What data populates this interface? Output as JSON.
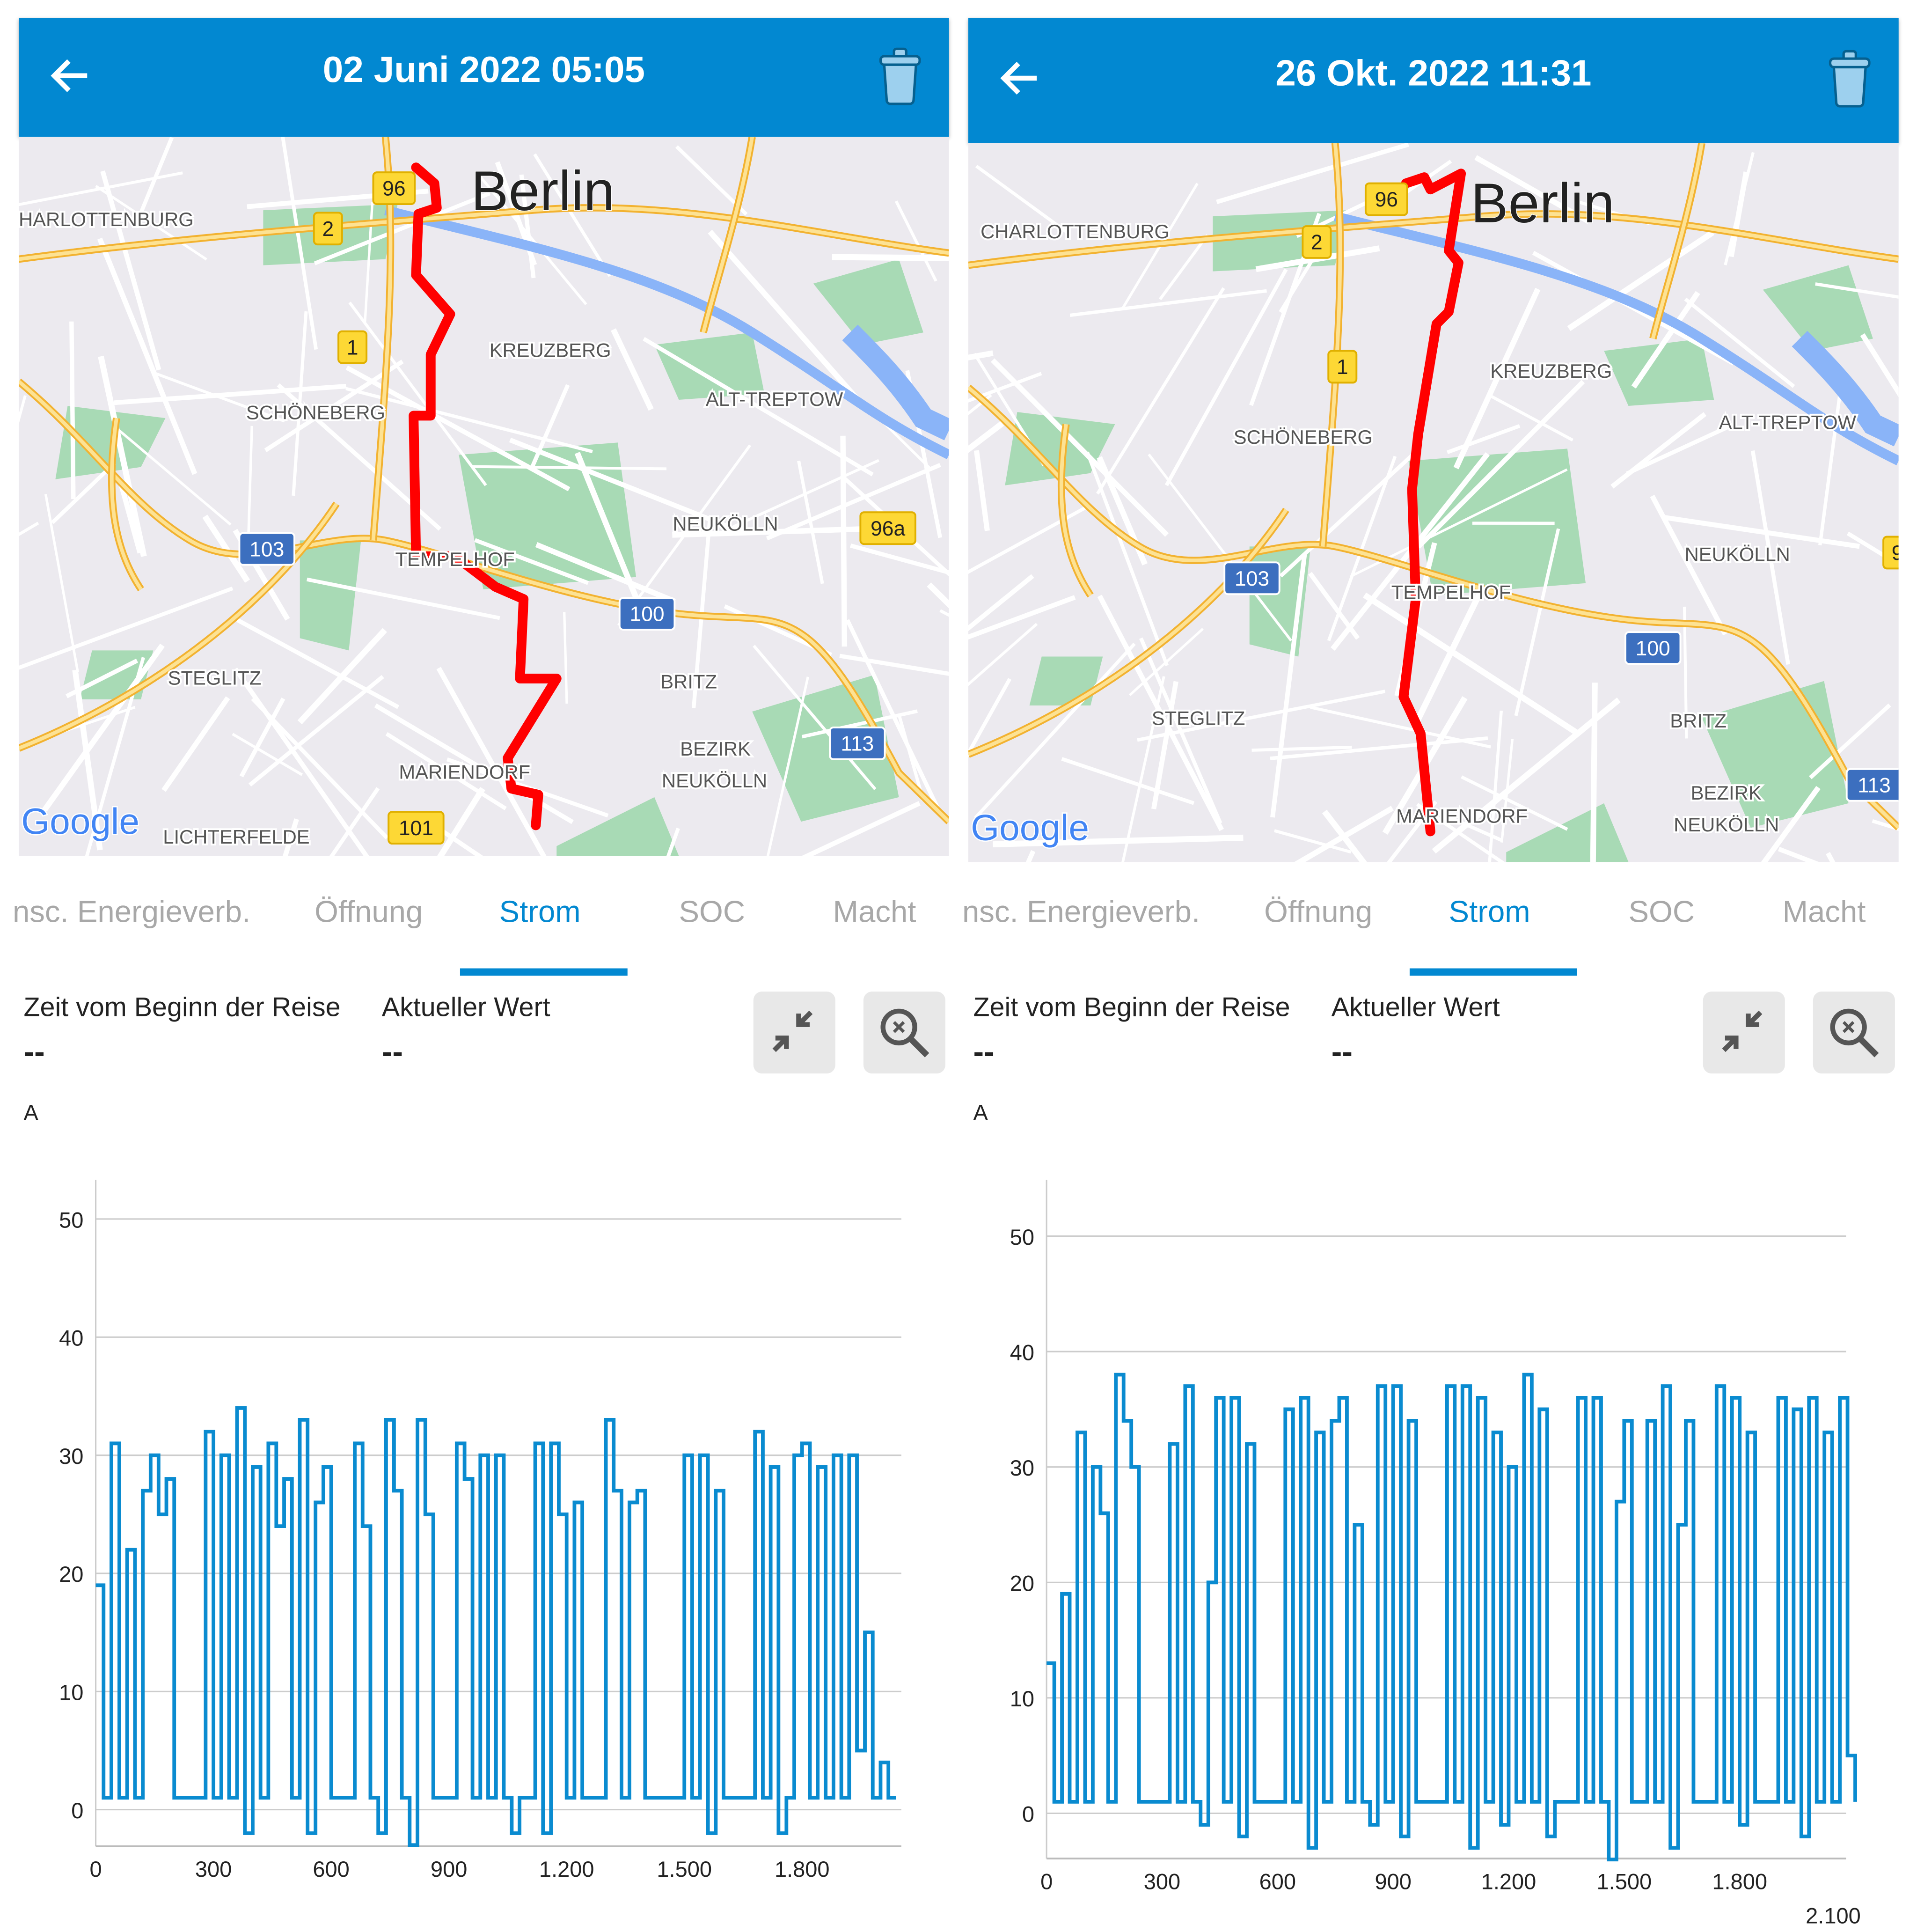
{
  "colors": {
    "header": "#0288d1",
    "accent": "#0288d1",
    "route": "#ff0000",
    "series": "#0a8bd0",
    "tab_inactive": "#a8a8a8"
  },
  "panels": [
    {
      "header": {
        "title": "02 Juni 2022 05:05",
        "back_icon": "arrow-left-icon",
        "delete_icon": "trash-icon"
      },
      "map": {
        "city": "Berlin",
        "logo": "Google",
        "labels": [
          "HARLOTTENBURG",
          "KREUZBERG",
          "SCHÖNEBERG",
          "ALT-TREPTOW",
          "NEUKÖLLN",
          "TEMPELHOF",
          "STEGLITZ",
          "BRITZ",
          "BEZIRK",
          "NEUKÖLLN",
          "MARIENDORF",
          "LICHTERFELDE"
        ],
        "shields": [
          "96",
          "2",
          "1",
          "96a",
          "103",
          "100",
          "113",
          "101"
        ]
      },
      "tabs": [
        "nsc. Energieverb.",
        "Öffnung",
        "Strom",
        "SOC",
        "Macht"
      ],
      "active_tab": 2,
      "info": {
        "time_label": "Zeit vom Beginn der Reise",
        "time_value": "--",
        "value_label": "Aktueller Wert",
        "value_value": "--"
      },
      "buttons": {
        "collapse_icon": "collapse-arrows-icon",
        "zoom_reset_icon": "zoom-reset-icon"
      },
      "unit": "A"
    },
    {
      "header": {
        "title": "26 Okt. 2022 11:31",
        "back_icon": "arrow-left-icon",
        "delete_icon": "trash-icon"
      },
      "map": {
        "city": "Berlin",
        "logo": "Google",
        "labels": [
          "CHARLOTTENBURG",
          "KREUZBERG",
          "SCHÖNEBERG",
          "ALT-TREPTOW",
          "NEUKÖLLN",
          "TEMPELHOF",
          "STEGLITZ",
          "BRITZ",
          "BEZIRK",
          "NEUKÖLLN",
          "MARIENDORF"
        ],
        "shields": [
          "96",
          "2",
          "1",
          "103",
          "100",
          "113",
          "9"
        ]
      },
      "tabs": [
        "nsc. Energieverb.",
        "Öffnung",
        "Strom",
        "SOC",
        "Macht"
      ],
      "active_tab": 2,
      "info": {
        "time_label": "Zeit vom Beginn der Reise",
        "time_value": "--",
        "value_label": "Aktueller Wert",
        "value_value": "--"
      },
      "buttons": {
        "collapse_icon": "collapse-arrows-icon",
        "zoom_reset_icon": "zoom-reset-icon"
      },
      "unit": "A"
    }
  ],
  "chart_data": [
    {
      "type": "line",
      "title": "",
      "xlabel": "",
      "ylabel": "A",
      "xlim": [
        0,
        2050
      ],
      "ylim": [
        -3,
        55
      ],
      "grid": true,
      "xticks": [
        0,
        300,
        600,
        900,
        1200,
        1500,
        1800
      ],
      "xtick_labels": [
        "0",
        "300",
        "600",
        "900",
        "1.200",
        "1.500",
        "1.800"
      ],
      "yticks": [
        0,
        10,
        20,
        30,
        40,
        50
      ],
      "ytick_labels": [
        "0",
        "10",
        "20",
        "30",
        "40",
        "50"
      ],
      "x_step": 20,
      "values": [
        19,
        1,
        31,
        1,
        22,
        1,
        27,
        30,
        25,
        28,
        1,
        1,
        1,
        1,
        32,
        1,
        30,
        1,
        34,
        -2,
        29,
        1,
        31,
        24,
        28,
        1,
        33,
        -2,
        26,
        29,
        1,
        1,
        1,
        31,
        24,
        1,
        -2,
        33,
        27,
        1,
        -3,
        33,
        25,
        1,
        1,
        1,
        31,
        28,
        1,
        30,
        1,
        30,
        1,
        -2,
        1,
        1,
        31,
        -2,
        31,
        25,
        1,
        26,
        1,
        1,
        1,
        33,
        27,
        1,
        26,
        27,
        1,
        1,
        1,
        1,
        1,
        30,
        1,
        30,
        -2,
        27,
        1,
        1,
        1,
        1,
        32,
        1,
        29,
        -2,
        1,
        30,
        31,
        1,
        29,
        1,
        30,
        1,
        30,
        5,
        15,
        1,
        4,
        1,
        1
      ]
    },
    {
      "type": "line",
      "title": "",
      "xlabel": "",
      "ylabel": "A",
      "xlim": [
        0,
        2080
      ],
      "ylim": [
        -4,
        55
      ],
      "grid": true,
      "xticks": [
        0,
        300,
        600,
        900,
        1200,
        1500,
        1800,
        2100
      ],
      "xtick_labels": [
        "0",
        "300",
        "600",
        "900",
        "1.200",
        "1.500",
        "1.800",
        "2.100"
      ],
      "yticks": [
        0,
        10,
        20,
        30,
        40,
        50
      ],
      "ytick_labels": [
        "0",
        "10",
        "20",
        "30",
        "40",
        "50"
      ],
      "x_step": 20,
      "values": [
        13,
        1,
        19,
        1,
        33,
        1,
        30,
        26,
        1,
        38,
        34,
        30,
        1,
        1,
        1,
        1,
        32,
        1,
        37,
        1,
        -1,
        20,
        36,
        1,
        36,
        -2,
        32,
        1,
        1,
        1,
        1,
        35,
        1,
        36,
        -3,
        33,
        1,
        34,
        36,
        1,
        25,
        1,
        -1,
        37,
        1,
        37,
        -2,
        34,
        1,
        1,
        1,
        1,
        37,
        1,
        37,
        -3,
        36,
        1,
        33,
        -1,
        30,
        1,
        38,
        1,
        35,
        -2,
        1,
        1,
        1,
        36,
        1,
        36,
        1,
        -4,
        27,
        34,
        1,
        1,
        34,
        1,
        37,
        -3,
        25,
        34,
        1,
        1,
        1,
        37,
        1,
        36,
        -1,
        33,
        1,
        1,
        1,
        36,
        1,
        35,
        -2,
        36,
        1,
        33,
        1,
        36,
        5,
        1
      ]
    }
  ]
}
